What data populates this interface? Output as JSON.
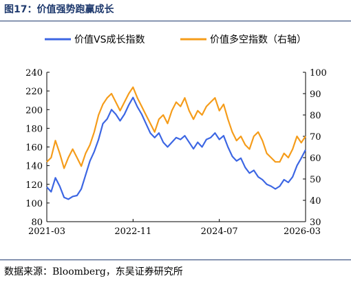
{
  "figure_title": "图17：价值强势跑赢成长",
  "source_note": "数据来源：Bloomberg，东吴证券研究所",
  "colors": {
    "blue": "#3c66e3",
    "orange": "#f59c1a",
    "axis": "#000000",
    "title": "#1f3a6e"
  },
  "chart_data": {
    "type": "line",
    "title": "",
    "xlabel": "",
    "ylabel": "",
    "x_range": [
      "2021-03",
      "2026-03"
    ],
    "x_ticks": [
      "2021-03",
      "2022-11",
      "2024-07",
      "2026-03"
    ],
    "ylim": [
      80,
      240
    ],
    "y_ticks": [
      80,
      100,
      120,
      140,
      160,
      180,
      200,
      220,
      240
    ],
    "y2lim": [
      30,
      100
    ],
    "y2_ticks": [
      30,
      40,
      50,
      60,
      70,
      80,
      90,
      100
    ],
    "legend_position": "top",
    "grid": false,
    "series": [
      {
        "name": "价值VS成长指数",
        "axis": "left",
        "color": "#3c66e3",
        "x": [
          "2021-03",
          "2021-04",
          "2021-05",
          "2021-06",
          "2021-07",
          "2021-08",
          "2021-09",
          "2021-10",
          "2021-11",
          "2021-12",
          "2022-01",
          "2022-02",
          "2022-03",
          "2022-04",
          "2022-05",
          "2022-06",
          "2022-07",
          "2022-08",
          "2022-09",
          "2022-10",
          "2022-11",
          "2022-12",
          "2023-01",
          "2023-02",
          "2023-03",
          "2023-04",
          "2023-05",
          "2023-06",
          "2023-07",
          "2023-08",
          "2023-09",
          "2023-10",
          "2023-11",
          "2023-12",
          "2024-01",
          "2024-02",
          "2024-03",
          "2024-04",
          "2024-05",
          "2024-06",
          "2024-07",
          "2024-08",
          "2024-09",
          "2024-10",
          "2024-11",
          "2024-12",
          "2025-01",
          "2025-02",
          "2025-03",
          "2025-04",
          "2025-05",
          "2025-06",
          "2025-07",
          "2025-08",
          "2025-09",
          "2025-10",
          "2025-11",
          "2025-12",
          "2026-01",
          "2026-02",
          "2026-03"
        ],
        "values": [
          117,
          112,
          127,
          118,
          106,
          104,
          107,
          108,
          115,
          130,
          145,
          155,
          168,
          185,
          190,
          200,
          195,
          188,
          195,
          205,
          213,
          203,
          195,
          185,
          175,
          170,
          175,
          165,
          160,
          165,
          170,
          168,
          172,
          165,
          158,
          165,
          160,
          168,
          170,
          175,
          168,
          172,
          160,
          150,
          145,
          148,
          138,
          132,
          135,
          128,
          125,
          120,
          118,
          115,
          118,
          125,
          122,
          128,
          140,
          148,
          157
        ]
      },
      {
        "name": "价值多空指数（右轴）",
        "axis": "right",
        "color": "#f59c1a",
        "x": [
          "2021-03",
          "2021-04",
          "2021-05",
          "2021-06",
          "2021-07",
          "2021-08",
          "2021-09",
          "2021-10",
          "2021-11",
          "2021-12",
          "2022-01",
          "2022-02",
          "2022-03",
          "2022-04",
          "2022-05",
          "2022-06",
          "2022-07",
          "2022-08",
          "2022-09",
          "2022-10",
          "2022-11",
          "2022-12",
          "2023-01",
          "2023-02",
          "2023-03",
          "2023-04",
          "2023-05",
          "2023-06",
          "2023-07",
          "2023-08",
          "2023-09",
          "2023-10",
          "2023-11",
          "2023-12",
          "2024-01",
          "2024-02",
          "2024-03",
          "2024-04",
          "2024-05",
          "2024-06",
          "2024-07",
          "2024-08",
          "2024-09",
          "2024-10",
          "2024-11",
          "2024-12",
          "2025-01",
          "2025-02",
          "2025-03",
          "2025-04",
          "2025-05",
          "2025-06",
          "2025-07",
          "2025-08",
          "2025-09",
          "2025-10",
          "2025-11",
          "2025-12",
          "2026-01",
          "2026-02",
          "2026-03"
        ],
        "values": [
          58,
          60,
          68,
          62,
          55,
          60,
          64,
          60,
          56,
          62,
          66,
          72,
          80,
          85,
          88,
          90,
          86,
          82,
          86,
          90,
          93,
          88,
          84,
          80,
          76,
          72,
          78,
          80,
          76,
          82,
          86,
          84,
          88,
          82,
          78,
          82,
          80,
          84,
          86,
          88,
          82,
          85,
          78,
          72,
          68,
          70,
          66,
          64,
          70,
          72,
          68,
          62,
          60,
          58,
          58,
          62,
          60,
          64,
          70,
          67,
          70
        ]
      }
    ]
  }
}
